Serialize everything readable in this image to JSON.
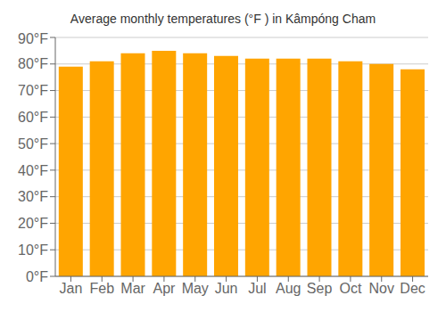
{
  "chart_data": {
    "type": "bar",
    "title": "Average monthly temperatures (°F ) in Kâmpóng Cham",
    "categories": [
      "Jan",
      "Feb",
      "Mar",
      "Apr",
      "May",
      "Jun",
      "Jul",
      "Aug",
      "Sep",
      "Oct",
      "Nov",
      "Dec"
    ],
    "values": [
      79,
      81,
      84,
      85,
      84,
      83,
      82,
      82,
      82,
      81,
      80,
      78
    ],
    "color": "#FFA500",
    "ylim": [
      0,
      90
    ],
    "yticks": [
      {
        "value": 0,
        "label": "0°F"
      },
      {
        "value": 10,
        "label": "10°F"
      },
      {
        "value": 20,
        "label": "20°F"
      },
      {
        "value": 30,
        "label": "30°F"
      },
      {
        "value": 40,
        "label": "40°F"
      },
      {
        "value": 50,
        "label": "50°F"
      },
      {
        "value": 60,
        "label": "60°F"
      },
      {
        "value": 70,
        "label": "70°F"
      },
      {
        "value": 80,
        "label": "80°F"
      },
      {
        "value": 90,
        "label": "90°F"
      }
    ],
    "grid": true
  }
}
